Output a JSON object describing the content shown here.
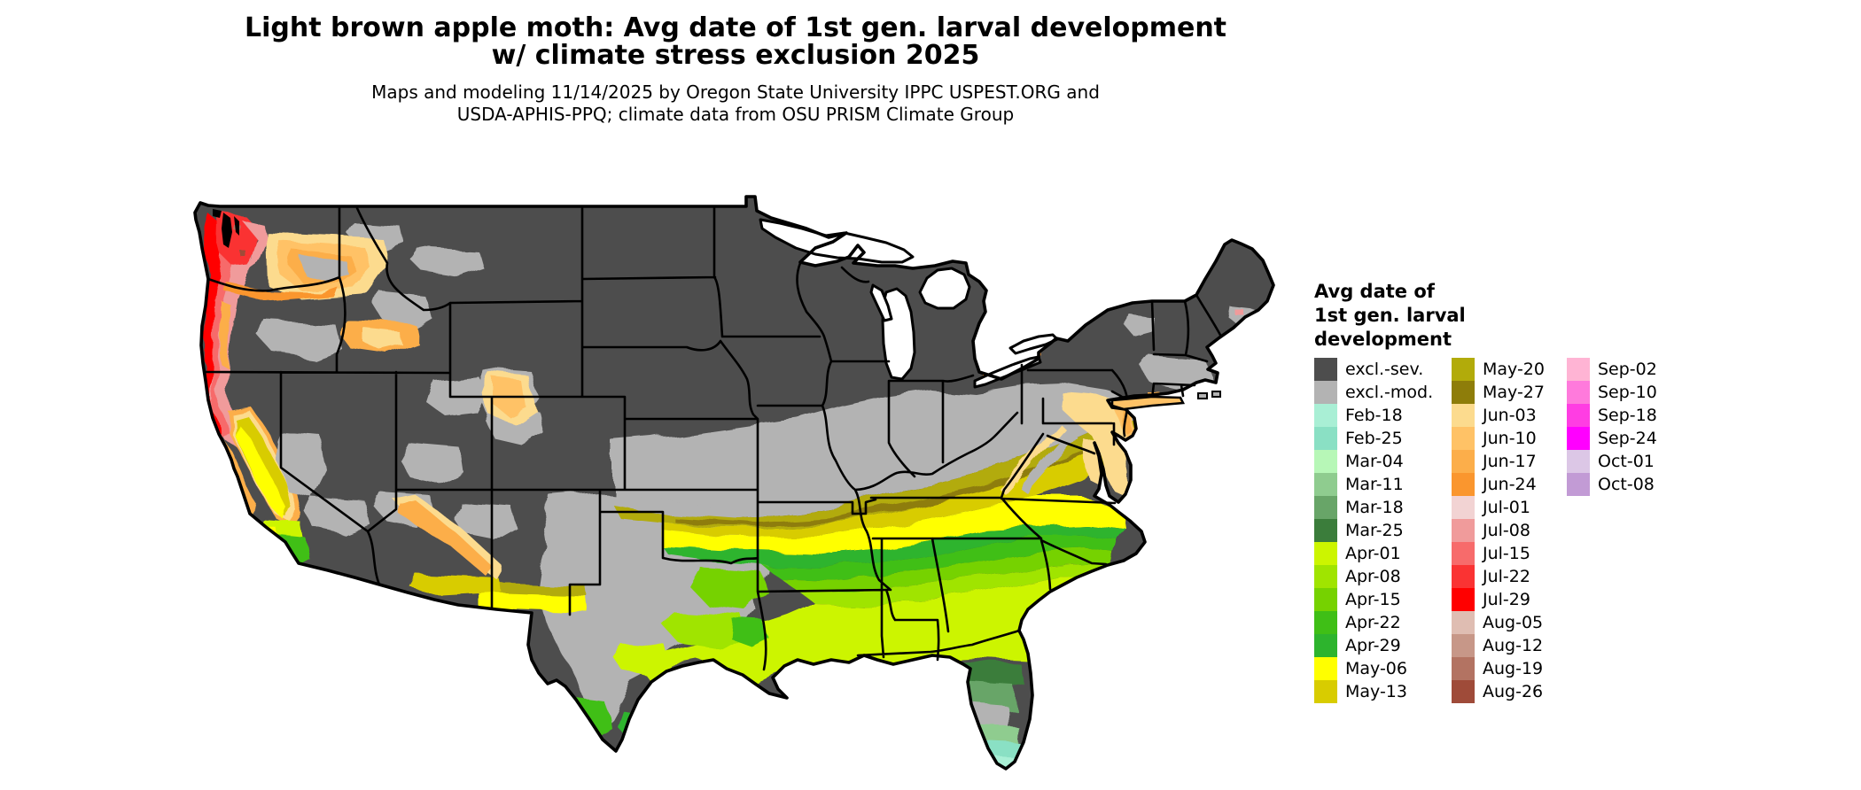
{
  "title": {
    "line1": "Light brown apple moth: Avg date of 1st gen. larval development",
    "line2": "w/ climate stress exclusion 2025"
  },
  "subtitle": {
    "line1": "Maps and modeling 11/14/2025 by Oregon State University IPPC USPEST.ORG and",
    "line2": "USDA-APHIS-PPQ; climate data from OSU PRISM Climate Group"
  },
  "legend": {
    "title": "Avg date of\n1st gen. larval\ndevelopment",
    "columns": [
      [
        {
          "label": "excl.-sev.",
          "color": "#4D4D4D"
        },
        {
          "label": "excl.-mod.",
          "color": "#B3B3B3"
        },
        {
          "label": "Feb-18",
          "color": "#A9EFD5"
        },
        {
          "label": "Feb-25",
          "color": "#8AE0C4"
        },
        {
          "label": "Mar-04",
          "color": "#B7F7B7"
        },
        {
          "label": "Mar-11",
          "color": "#8FCC8F"
        },
        {
          "label": "Mar-18",
          "color": "#68A568"
        },
        {
          "label": "Mar-25",
          "color": "#3B7D3B"
        },
        {
          "label": "Apr-01",
          "color": "#CCF500"
        },
        {
          "label": "Apr-08",
          "color": "#A0E400"
        },
        {
          "label": "Apr-15",
          "color": "#76D200"
        },
        {
          "label": "Apr-22",
          "color": "#3FBF16"
        },
        {
          "label": "Apr-29",
          "color": "#2DB42D"
        },
        {
          "label": "May-06",
          "color": "#FFFF00"
        },
        {
          "label": "May-13",
          "color": "#D8CC00"
        }
      ],
      [
        {
          "label": "May-20",
          "color": "#B2AB0A"
        },
        {
          "label": "May-27",
          "color": "#8E7D0A"
        },
        {
          "label": "Jun-03",
          "color": "#FCDB8E"
        },
        {
          "label": "Jun-10",
          "color": "#FFC266"
        },
        {
          "label": "Jun-17",
          "color": "#FCAE4A"
        },
        {
          "label": "Jun-24",
          "color": "#FA962E"
        },
        {
          "label": "Jul-01",
          "color": "#F2D3D3"
        },
        {
          "label": "Jul-08",
          "color": "#F09B9B"
        },
        {
          "label": "Jul-15",
          "color": "#F76B6B"
        },
        {
          "label": "Jul-22",
          "color": "#FA3333"
        },
        {
          "label": "Jul-29",
          "color": "#FF0000"
        },
        {
          "label": "Aug-05",
          "color": "#DFBDB2"
        },
        {
          "label": "Aug-12",
          "color": "#C79788"
        },
        {
          "label": "Aug-19",
          "color": "#B37362"
        },
        {
          "label": "Aug-26",
          "color": "#9F4B39"
        }
      ],
      [
        {
          "label": "Sep-02",
          "color": "#FFB4D4"
        },
        {
          "label": "Sep-10",
          "color": "#FF7ADC"
        },
        {
          "label": "Sep-18",
          "color": "#FF3DE3"
        },
        {
          "label": "Sep-24",
          "color": "#FF00FF"
        },
        {
          "label": "Oct-01",
          "color": "#DCC7E6"
        },
        {
          "label": "Oct-08",
          "color": "#C29BD5"
        }
      ]
    ]
  }
}
